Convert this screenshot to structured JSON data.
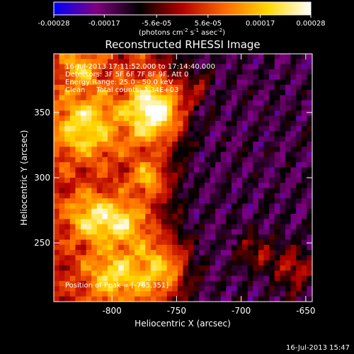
{
  "colorbar": {
    "tick_labels": [
      "-0.00028",
      "-0.00017",
      "-5.6e-05",
      "5.6e-05",
      "0.00017",
      "0.00028"
    ],
    "ticks": [
      -0.00028,
      -0.00017,
      -5.6e-05,
      5.6e-05,
      0.00017,
      0.00028
    ],
    "range": [
      -0.00028,
      0.00028
    ],
    "units": "(photons cm",
    "units_sup1": "-2",
    "units_mid": " s",
    "units_sup2": "-1",
    "units_end": " asec",
    "units_sup3": "-2",
    "units_close": ")",
    "colors": [
      "#0000ff",
      "#800080",
      "#000000",
      "#b40000",
      "#ff6a00",
      "#ffd800",
      "#ffffff"
    ]
  },
  "chart_data": {
    "type": "heatmap",
    "title": "Reconstructed RHESSI Image",
    "xlabel": "Heliocentric X (arcsec)",
    "ylabel": "Heliocentric Y (arcsec)",
    "xlim": [
      -845,
      -645
    ],
    "ylim": [
      205,
      395
    ],
    "x_ticks": [
      -800,
      -750,
      -700,
      -650
    ],
    "y_ticks": [
      250,
      300,
      350
    ],
    "x_tick_labels": [
      "-800",
      "-750",
      "-700",
      "-650"
    ],
    "y_tick_labels": [
      "250",
      "300",
      "350"
    ],
    "annotations": [
      "16-Jul-2013 17:11:52.000 to 17:14:40.000",
      "Detectors: 3F 5F 6F 7F 8F 9F, Att 0",
      "Energy Range: 25.0 - 50.0 keV",
      "Clean     Total counts: 3.34E+03"
    ],
    "peak_label": "Position of Peak = [-765,351]",
    "peak": [
      -765,
      351
    ],
    "grid": false
  },
  "footer": {
    "timestamp": "16-Jul-2013 15:47"
  }
}
